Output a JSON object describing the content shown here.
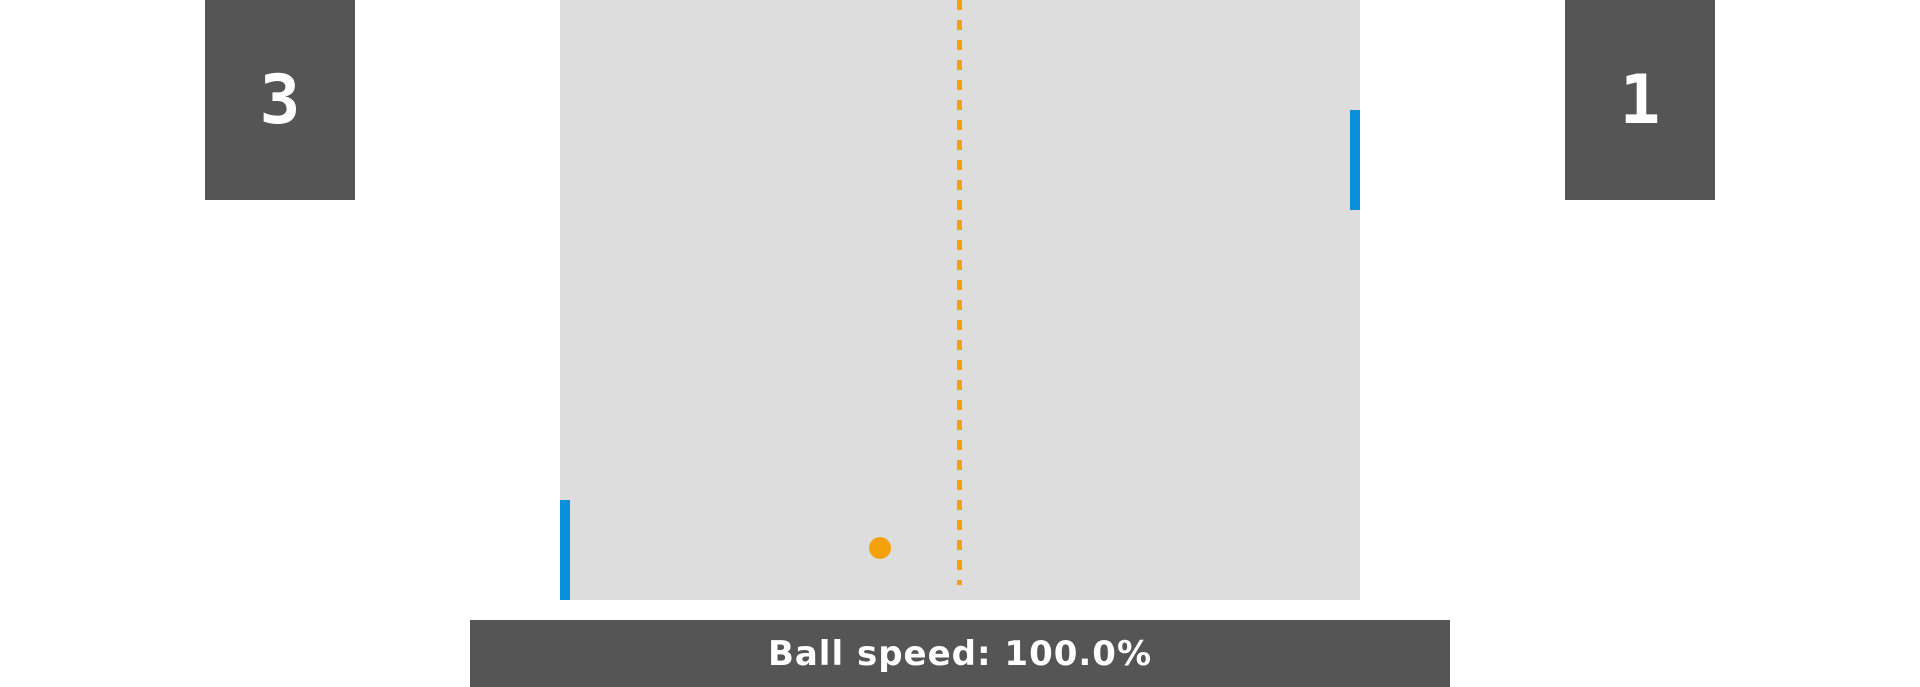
{
  "scores": {
    "left": "3",
    "right": "1"
  },
  "status": {
    "ball_speed_text": "Ball speed: 100.0%"
  },
  "colors": {
    "score_bg": "#555555",
    "court_bg": "#dddddd",
    "paddle": "#0a8fdc",
    "ball": "#f5a20a",
    "center_line": "#f5a20a"
  }
}
